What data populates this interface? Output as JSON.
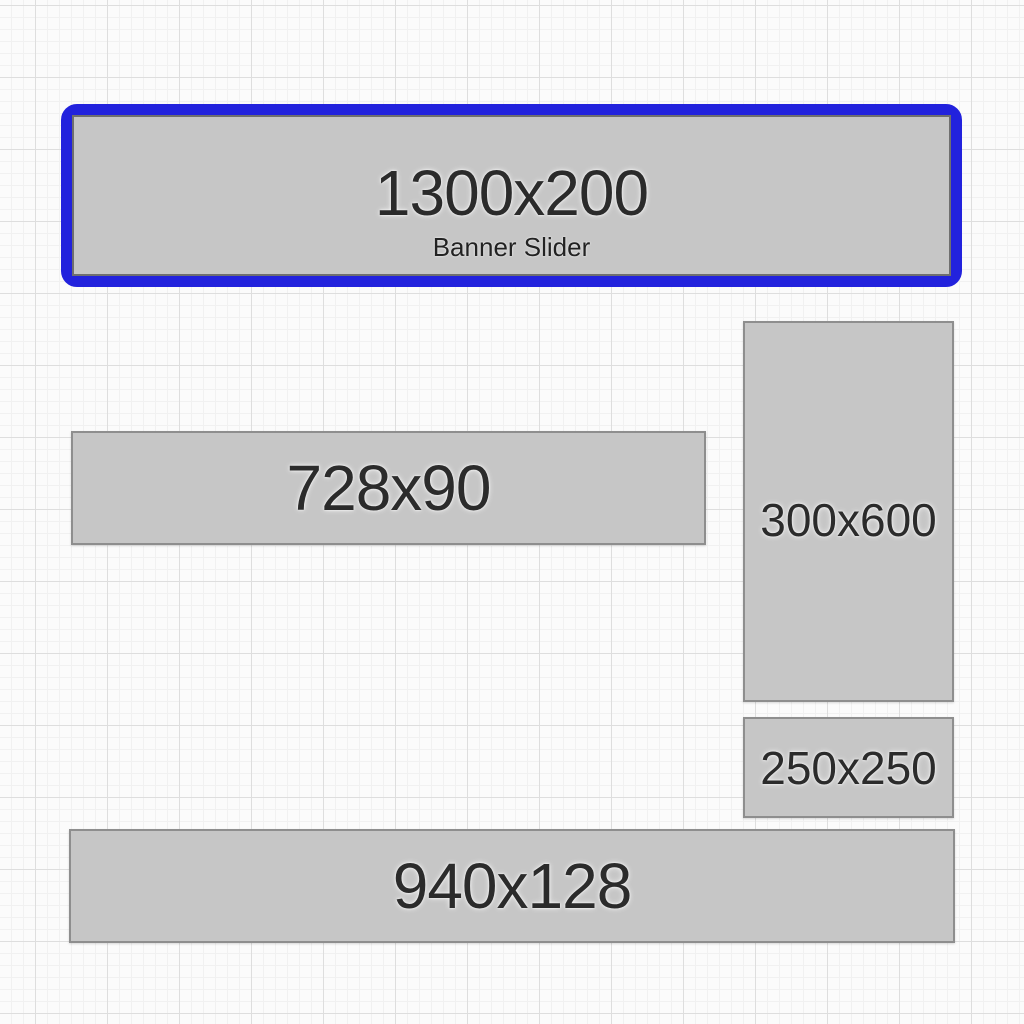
{
  "page": {
    "description": "Ad banner placement size mockup on graph paper background"
  },
  "colors": {
    "highlight_blue": "#2222dd",
    "banner_fill": "#c6c6c6",
    "banner_border": "#8e8e8e",
    "text": "#2b2b2b",
    "background": "#fbfbfb",
    "grid_major": "#dedede",
    "grid_minor": "#f1f1f1"
  },
  "banners": [
    {
      "id": "banner-slider",
      "label": "1300x200",
      "sublabel": "Banner Slider",
      "highlighted": true
    },
    {
      "id": "leaderboard",
      "label": "728x90"
    },
    {
      "id": "half-page",
      "label": "300x600"
    },
    {
      "id": "square",
      "label": "250x250"
    },
    {
      "id": "full-banner",
      "label": "940x128"
    }
  ]
}
